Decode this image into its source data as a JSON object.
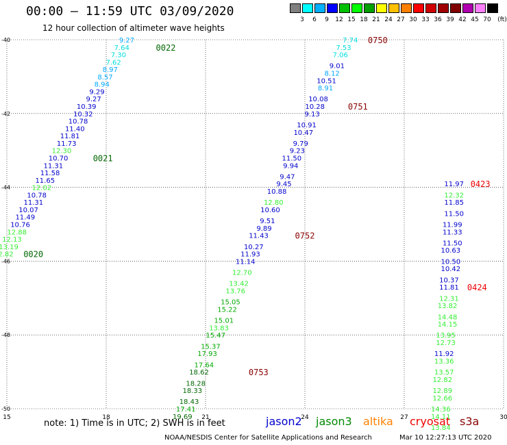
{
  "header": {
    "title": "00:00 – 11:59 UTC 03/09/2020",
    "subtitle": "12 hour collection of altimeter wave heights"
  },
  "scale": {
    "unit": "(ft)",
    "colors": [
      "#808080",
      "#00ffff",
      "#00b0ff",
      "#0000ff",
      "#00c000",
      "#00ff00",
      "#00a000",
      "#ffff00",
      "#ffc000",
      "#ff8000",
      "#ff0000",
      "#d00000",
      "#a00000",
      "#800000",
      "#b000b0",
      "#ff80ff",
      "#000000"
    ],
    "labels": [
      "3",
      "6",
      "9",
      "12",
      "15",
      "18",
      "21",
      "24",
      "27",
      "30",
      "33",
      "36",
      "39",
      "42",
      "45",
      "70"
    ]
  },
  "axes": {
    "x_ticks": [
      "15",
      "18",
      "21",
      "24",
      "27",
      "30"
    ],
    "y_ticks": [
      "-40",
      "-42",
      "-44",
      "-46",
      "-48",
      "-50"
    ]
  },
  "colors": {
    "jason2": "#0000cc",
    "jason3": "#008800",
    "altika": "#ff8000",
    "cryosat": "#ee0000",
    "s3a": "#880000",
    "t12": "#0000cc",
    "t15": "#00aa00",
    "t18": "#006600",
    "t9": "#00a8ff",
    "t6": "#00dddd",
    "t12b": "#33ee33"
  },
  "tracks": [
    {
      "id": "track-0020-0022",
      "obs": [
        {
          "lon": 18.85,
          "lat": -40.0,
          "swh": "9.27",
          "c": "t9"
        },
        {
          "lon": 18.7,
          "lat": -40.2,
          "swh": "7.64",
          "c": "t6"
        },
        {
          "lon": 18.6,
          "lat": -40.4,
          "swh": "7.30",
          "c": "t6"
        },
        {
          "lon": 18.45,
          "lat": -40.6,
          "swh": "7.62",
          "c": "t6"
        },
        {
          "lon": 18.35,
          "lat": -40.8,
          "swh": "8.97",
          "c": "t9"
        },
        {
          "lon": 18.2,
          "lat": -41.0,
          "swh": "8.57",
          "c": "t9"
        },
        {
          "lon": 18.1,
          "lat": -41.2,
          "swh": "8.94",
          "c": "t9"
        },
        {
          "lon": 17.95,
          "lat": -41.4,
          "swh": "9.29",
          "c": "t12"
        },
        {
          "lon": 17.85,
          "lat": -41.6,
          "swh": "9.27",
          "c": "t12"
        },
        {
          "lon": 17.7,
          "lat": -41.8,
          "swh": "10.39",
          "c": "t12"
        },
        {
          "lon": 17.6,
          "lat": -42.0,
          "swh": "10.32",
          "c": "t12"
        },
        {
          "lon": 17.45,
          "lat": -42.2,
          "swh": "10.78",
          "c": "t12"
        },
        {
          "lon": 17.35,
          "lat": -42.4,
          "swh": "11.40",
          "c": "t12"
        },
        {
          "lon": 17.2,
          "lat": -42.6,
          "swh": "11.81",
          "c": "t12"
        },
        {
          "lon": 17.1,
          "lat": -42.8,
          "swh": "11.73",
          "c": "t12"
        },
        {
          "lon": 16.95,
          "lat": -43.0,
          "swh": "12.30",
          "c": "t12b"
        },
        {
          "lon": 16.85,
          "lat": -43.2,
          "swh": "10.70",
          "c": "t12"
        },
        {
          "lon": 16.7,
          "lat": -43.4,
          "swh": "11.31",
          "c": "t12"
        },
        {
          "lon": 16.6,
          "lat": -43.6,
          "swh": "11.58",
          "c": "t12"
        },
        {
          "lon": 16.45,
          "lat": -43.8,
          "swh": "11.65",
          "c": "t12"
        },
        {
          "lon": 16.35,
          "lat": -44.0,
          "swh": "12.02",
          "c": "t12b"
        },
        {
          "lon": 16.2,
          "lat": -44.2,
          "swh": "10.78",
          "c": "t12"
        },
        {
          "lon": 16.1,
          "lat": -44.4,
          "swh": "11.31",
          "c": "t12"
        },
        {
          "lon": 15.95,
          "lat": -44.6,
          "swh": "10.07",
          "c": "t12"
        },
        {
          "lon": 15.85,
          "lat": -44.8,
          "swh": "11.49",
          "c": "t12"
        },
        {
          "lon": 15.7,
          "lat": -45.0,
          "swh": "10.76",
          "c": "t12"
        },
        {
          "lon": 15.6,
          "lat": -45.2,
          "swh": "12.88",
          "c": "t12b"
        },
        {
          "lon": 15.45,
          "lat": -45.4,
          "swh": "12.13",
          "c": "t12b"
        },
        {
          "lon": 15.35,
          "lat": -45.6,
          "swh": "13.19",
          "c": "t12b"
        },
        {
          "lon": 15.2,
          "lat": -45.8,
          "swh": "12.82",
          "c": "t12b"
        }
      ],
      "times": [
        {
          "lon": 19.8,
          "lat": -40.2,
          "t": "0022",
          "c": "t18"
        },
        {
          "lon": 17.9,
          "lat": -43.2,
          "t": "0021",
          "c": "t18"
        },
        {
          "lon": 15.8,
          "lat": -45.8,
          "t": "0020",
          "c": "t18"
        }
      ]
    },
    {
      "id": "track-0750-0753",
      "obs": [
        {
          "lon": 25.6,
          "lat": -40.0,
          "swh": "7.74",
          "c": "t6"
        },
        {
          "lon": 25.4,
          "lat": -40.2,
          "swh": "7.53",
          "c": "t6"
        },
        {
          "lon": 25.3,
          "lat": -40.4,
          "swh": "7.06",
          "c": "t6"
        },
        {
          "lon": 25.2,
          "lat": -40.7,
          "swh": "9.01",
          "c": "t12"
        },
        {
          "lon": 25.05,
          "lat": -40.9,
          "swh": "8.12",
          "c": "t9"
        },
        {
          "lon": 24.95,
          "lat": -41.1,
          "swh": "10.51",
          "c": "t12"
        },
        {
          "lon": 24.85,
          "lat": -41.3,
          "swh": "8.91",
          "c": "t9"
        },
        {
          "lon": 24.7,
          "lat": -41.6,
          "swh": "10.08",
          "c": "t12"
        },
        {
          "lon": 24.6,
          "lat": -41.8,
          "swh": "10.28",
          "c": "t12"
        },
        {
          "lon": 24.45,
          "lat": -42.0,
          "swh": "9.13",
          "c": "t12"
        },
        {
          "lon": 24.35,
          "lat": -42.3,
          "swh": "10.91",
          "c": "t12"
        },
        {
          "lon": 24.25,
          "lat": -42.5,
          "swh": "10.47",
          "c": "t12"
        },
        {
          "lon": 24.1,
          "lat": -42.8,
          "swh": "9.79",
          "c": "t12"
        },
        {
          "lon": 24.0,
          "lat": -43.0,
          "swh": "9.23",
          "c": "t12"
        },
        {
          "lon": 23.9,
          "lat": -43.2,
          "swh": "11.50",
          "c": "t12"
        },
        {
          "lon": 23.8,
          "lat": -43.4,
          "swh": "9.94",
          "c": "t12"
        },
        {
          "lon": 23.7,
          "lat": -43.7,
          "swh": "9.47",
          "c": "t12"
        },
        {
          "lon": 23.6,
          "lat": -43.9,
          "swh": "9.45",
          "c": "t12"
        },
        {
          "lon": 23.45,
          "lat": -44.1,
          "swh": "10.88",
          "c": "t12"
        },
        {
          "lon": 23.35,
          "lat": -44.4,
          "swh": "12.80",
          "c": "t12b"
        },
        {
          "lon": 23.25,
          "lat": -44.6,
          "swh": "10.60",
          "c": "t12"
        },
        {
          "lon": 23.1,
          "lat": -44.9,
          "swh": "9.51",
          "c": "t12"
        },
        {
          "lon": 23.0,
          "lat": -45.1,
          "swh": "9.89",
          "c": "t12"
        },
        {
          "lon": 22.9,
          "lat": -45.3,
          "swh": "11.43",
          "c": "t12"
        },
        {
          "lon": 22.75,
          "lat": -45.6,
          "swh": "10.27",
          "c": "t12"
        },
        {
          "lon": 22.65,
          "lat": -45.8,
          "swh": "11.93",
          "c": "t12"
        },
        {
          "lon": 22.5,
          "lat": -46.0,
          "swh": "11.14",
          "c": "t12"
        },
        {
          "lon": 22.4,
          "lat": -46.3,
          "swh": "12.70",
          "c": "t12b"
        },
        {
          "lon": 22.3,
          "lat": -46.6,
          "swh": "13.42",
          "c": "t12b"
        },
        {
          "lon": 22.2,
          "lat": -46.8,
          "swh": "13.76",
          "c": "t12b"
        },
        {
          "lon": 22.05,
          "lat": -47.1,
          "swh": "15.05",
          "c": "t15"
        },
        {
          "lon": 21.95,
          "lat": -47.3,
          "swh": "15.22",
          "c": "t15"
        },
        {
          "lon": 21.85,
          "lat": -47.6,
          "swh": "15.01",
          "c": "t15"
        },
        {
          "lon": 21.7,
          "lat": -47.8,
          "swh": "13.83",
          "c": "t12b"
        },
        {
          "lon": 21.6,
          "lat": -48.0,
          "swh": "15.47",
          "c": "t15"
        },
        {
          "lon": 21.45,
          "lat": -48.3,
          "swh": "15.37",
          "c": "t15"
        },
        {
          "lon": 21.35,
          "lat": -48.5,
          "swh": "17.93",
          "c": "t15"
        },
        {
          "lon": 21.25,
          "lat": -48.8,
          "swh": "17.64",
          "c": "t15"
        },
        {
          "lon": 21.1,
          "lat": -49.0,
          "swh": "18.62",
          "c": "t18"
        },
        {
          "lon": 21.0,
          "lat": -49.3,
          "swh": "18.28",
          "c": "t18"
        },
        {
          "lon": 20.9,
          "lat": -49.5,
          "swh": "18.33",
          "c": "t18"
        },
        {
          "lon": 20.8,
          "lat": -49.8,
          "swh": "18.43",
          "c": "t18"
        },
        {
          "lon": 20.7,
          "lat": -50.0,
          "swh": "17.41",
          "c": "t15"
        },
        {
          "lon": 20.6,
          "lat": -50.2,
          "swh": "19.69",
          "c": "t18"
        }
      ],
      "times": [
        {
          "lon": 26.2,
          "lat": -40.0,
          "t": "0750",
          "c": "s3a"
        },
        {
          "lon": 25.6,
          "lat": -41.8,
          "t": "0751",
          "c": "s3a"
        },
        {
          "lon": 24.0,
          "lat": -45.3,
          "t": "0752",
          "c": "s3a"
        },
        {
          "lon": 22.6,
          "lat": -49.0,
          "t": "0753",
          "c": "s3a"
        }
      ]
    },
    {
      "id": "track-0423-0424",
      "obs": [
        {
          "lon": 28.8,
          "lat": -43.9,
          "swh": "11.97",
          "c": "t12"
        },
        {
          "lon": 28.8,
          "lat": -44.2,
          "swh": "12.32",
          "c": "t12b"
        },
        {
          "lon": 28.8,
          "lat": -44.4,
          "swh": "11.85",
          "c": "t12"
        },
        {
          "lon": 28.8,
          "lat": -44.7,
          "swh": "11.50",
          "c": "t12"
        },
        {
          "lon": 28.75,
          "lat": -45.0,
          "swh": "11.99",
          "c": "t12"
        },
        {
          "lon": 28.75,
          "lat": -45.2,
          "swh": "11.33",
          "c": "t12"
        },
        {
          "lon": 28.75,
          "lat": -45.5,
          "swh": "11.50",
          "c": "t12"
        },
        {
          "lon": 28.7,
          "lat": -45.7,
          "swh": "10.63",
          "c": "t12"
        },
        {
          "lon": 28.7,
          "lat": -46.0,
          "swh": "10.50",
          "c": "t12"
        },
        {
          "lon": 28.7,
          "lat": -46.2,
          "swh": "10.42",
          "c": "t12"
        },
        {
          "lon": 28.65,
          "lat": -46.5,
          "swh": "10.37",
          "c": "t12"
        },
        {
          "lon": 28.65,
          "lat": -46.7,
          "swh": "11.81",
          "c": "t12"
        },
        {
          "lon": 28.65,
          "lat": -47.0,
          "swh": "12.31",
          "c": "t12b"
        },
        {
          "lon": 28.6,
          "lat": -47.2,
          "swh": "13.82",
          "c": "t12b"
        },
        {
          "lon": 28.6,
          "lat": -47.5,
          "swh": "14.48",
          "c": "t12b"
        },
        {
          "lon": 28.6,
          "lat": -47.7,
          "swh": "14.15",
          "c": "t12b"
        },
        {
          "lon": 28.55,
          "lat": -48.0,
          "swh": "13.95",
          "c": "t12b"
        },
        {
          "lon": 28.55,
          "lat": -48.2,
          "swh": "12.73",
          "c": "t12b"
        },
        {
          "lon": 28.5,
          "lat": -48.5,
          "swh": "11.92",
          "c": "t12"
        },
        {
          "lon": 28.5,
          "lat": -48.7,
          "swh": "13.36",
          "c": "t12b"
        },
        {
          "lon": 28.5,
          "lat": -49.0,
          "swh": "13.57",
          "c": "t12b"
        },
        {
          "lon": 28.45,
          "lat": -49.2,
          "swh": "12.82",
          "c": "t12b"
        },
        {
          "lon": 28.45,
          "lat": -49.5,
          "swh": "12.89",
          "c": "t12b"
        },
        {
          "lon": 28.45,
          "lat": -49.7,
          "swh": "12.66",
          "c": "t12b"
        },
        {
          "lon": 28.4,
          "lat": -50.0,
          "swh": "14.36",
          "c": "t12b"
        },
        {
          "lon": 28.4,
          "lat": -50.2,
          "swh": "14.11",
          "c": "t12b"
        },
        {
          "lon": 28.4,
          "lat": -50.5,
          "swh": "13.84",
          "c": "t12b"
        }
      ],
      "times": [
        {
          "lon": 29.3,
          "lat": -43.9,
          "t": "0423",
          "c": "cryosat"
        },
        {
          "lon": 29.2,
          "lat": -46.7,
          "t": "0424",
          "c": "cryosat"
        }
      ]
    }
  ],
  "footer": {
    "note": "note: 1) Time is in UTC; 2) SWH is in feet",
    "sats": [
      "jason2",
      "jason3",
      "altika",
      "cryosat",
      "s3a"
    ],
    "credit": "NOAA/NESDIS Center for Satellite Applications and Research",
    "stamp": "Mar 10 12:27:13 UTC 2020"
  }
}
